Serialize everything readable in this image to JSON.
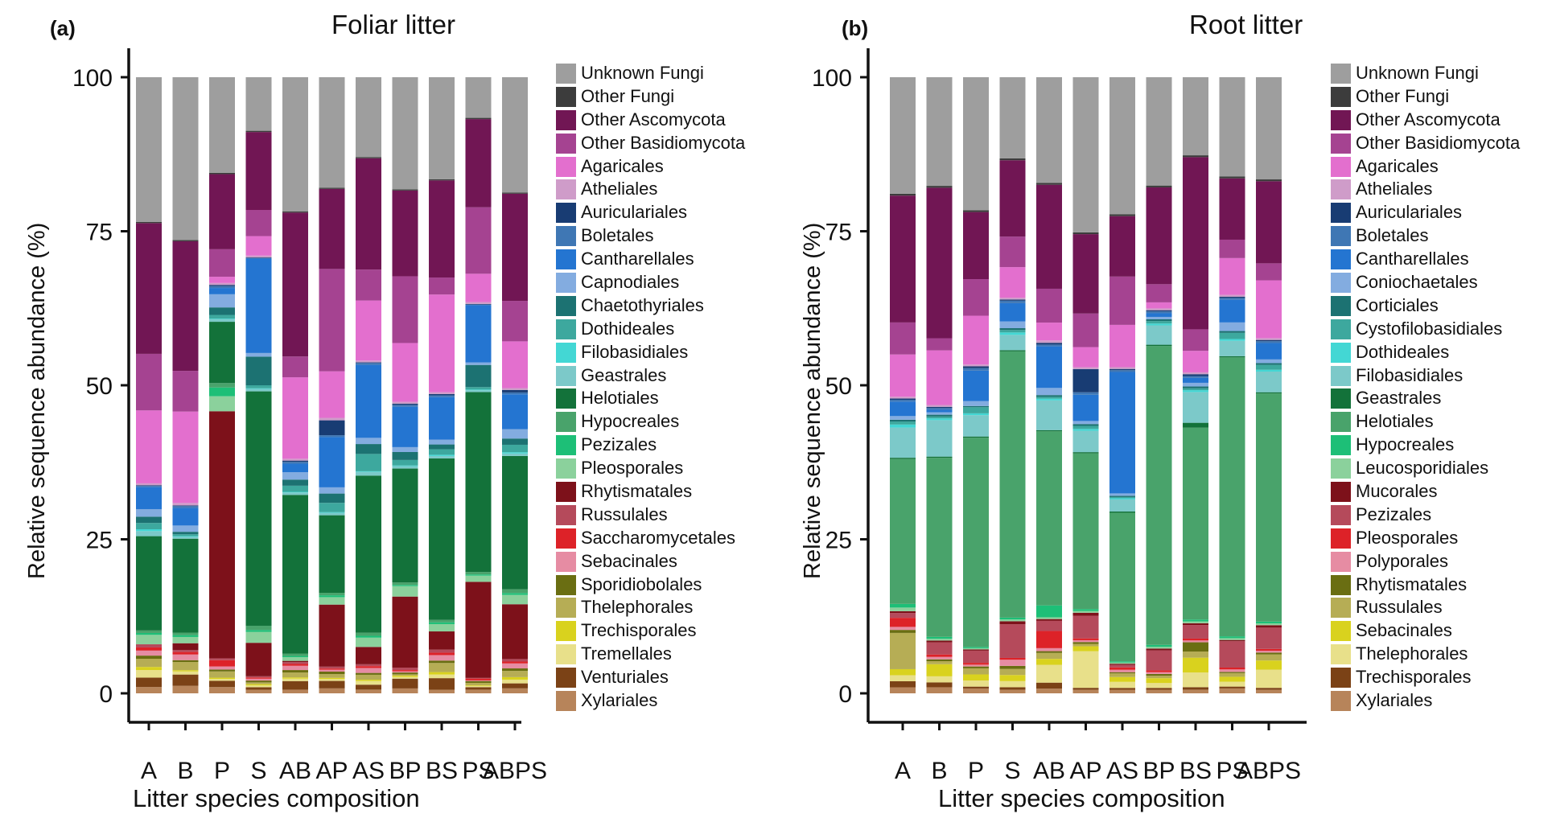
{
  "chart_data": [
    {
      "type": "bar",
      "stacked": true,
      "panel_letter": "(a)",
      "title": "Foliar litter",
      "xlabel": "Litter species composition",
      "ylabel": "Relative sequence abundance (%)",
      "ylim": [
        0,
        100
      ],
      "yticks": [
        "0",
        "25",
        "50",
        "75",
        "100"
      ],
      "legend_position": "right",
      "categories": [
        "A",
        "B",
        "P",
        "S",
        "AB",
        "AP",
        "AS",
        "BP",
        "BS",
        "PS",
        "ABPS"
      ],
      "series": [
        {
          "name": "Xylariales",
          "color": "#b7845a",
          "values": [
            1.0,
            1.2,
            1.0,
            0.6,
            0.6,
            0.8,
            0.6,
            0.8,
            0.6,
            0.6,
            0.8
          ]
        },
        {
          "name": "Venturiales",
          "color": "#7b4216",
          "values": [
            1.5,
            1.8,
            1.0,
            0.4,
            1.4,
            1.2,
            0.8,
            1.6,
            1.9,
            0.4,
            0.8
          ]
        },
        {
          "name": "Tremellales",
          "color": "#e8e08a",
          "values": [
            1.2,
            0.5,
            0.3,
            0.3,
            0.4,
            0.3,
            0.6,
            0.3,
            0.6,
            0.2,
            0.6
          ]
        },
        {
          "name": "Trechisporales",
          "color": "#d9d21e",
          "values": [
            0.5,
            0.2,
            0.2,
            0.2,
            0.2,
            0.2,
            0.2,
            0.2,
            0.4,
            0.1,
            0.4
          ]
        },
        {
          "name": "Thelephorales",
          "color": "#b6ad55",
          "values": [
            1.3,
            1.3,
            1.0,
            0.3,
            0.8,
            0.6,
            0.8,
            0.2,
            1.5,
            0.4,
            1.0
          ]
        },
        {
          "name": "Sporidiobolales",
          "color": "#6a6e12",
          "values": [
            0.5,
            0.3,
            0.3,
            0.3,
            0.4,
            0.4,
            0.3,
            0.3,
            0.4,
            0.3,
            0.4
          ]
        },
        {
          "name": "Sebacinales",
          "color": "#e68ca3",
          "values": [
            0.8,
            0.9,
            0.5,
            0.3,
            0.7,
            0.3,
            0.8,
            0.2,
            0.9,
            0.1,
            0.8
          ]
        },
        {
          "name": "Saccharomycetales",
          "color": "#dd2228",
          "values": [
            0.5,
            0.4,
            1.0,
            0.2,
            0.3,
            0.2,
            0.3,
            0.2,
            0.4,
            0.3,
            0.3
          ]
        },
        {
          "name": "Russulales",
          "color": "#b54a5b",
          "values": [
            0.5,
            0.3,
            0.3,
            0.2,
            0.3,
            0.3,
            0.3,
            0.4,
            0.5,
            0.1,
            0.4
          ]
        },
        {
          "name": "Rhytismatales",
          "color": "#7d111a",
          "values": [
            0.0,
            1.1,
            39.5,
            5.5,
            0.2,
            10.0,
            2.8,
            11.6,
            3.0,
            15.6,
            8.8
          ]
        },
        {
          "name": "Pleosporales",
          "color": "#8bd19c",
          "values": [
            1.5,
            1.0,
            2.4,
            1.8,
            0.6,
            1.2,
            1.5,
            1.7,
            1.2,
            1.0,
            1.5
          ]
        },
        {
          "name": "Pezizales",
          "color": "#1dbf77",
          "values": [
            0.3,
            0.3,
            1.4,
            0.3,
            0.2,
            0.3,
            0.3,
            0.2,
            0.3,
            0.2,
            0.3
          ]
        },
        {
          "name": "Hypocreales",
          "color": "#49a36b",
          "values": [
            0.4,
            0.4,
            0.7,
            0.7,
            0.4,
            0.4,
            0.5,
            0.4,
            0.4,
            0.4,
            0.6
          ]
        },
        {
          "name": "Helotiales",
          "color": "#13723a",
          "values": [
            15.0,
            15.0,
            9.8,
            38.5,
            25.9,
            12.5,
            25.4,
            18.6,
            26.6,
            29.2,
            21.4
          ]
        },
        {
          "name": "Geastrales",
          "color": "#7cc9c9",
          "values": [
            0.8,
            0.3,
            0.4,
            0.4,
            0.4,
            0.4,
            0.6,
            0.4,
            0.4,
            0.3,
            0.4
          ]
        },
        {
          "name": "Filobasidiales",
          "color": "#43d7d4",
          "values": [
            0.3,
            0.1,
            0.1,
            0.1,
            0.1,
            0.1,
            0.1,
            0.1,
            0.2,
            0.1,
            0.2
          ]
        },
        {
          "name": "Dothideales",
          "color": "#3da89e",
          "values": [
            1.0,
            0.3,
            0.6,
            0.5,
            1.0,
            1.5,
            2.8,
            0.9,
            0.9,
            0.4,
            1.2
          ]
        },
        {
          "name": "Chaetothyriales",
          "color": "#1c7272",
          "values": [
            1.0,
            0.4,
            1.2,
            4.7,
            1.0,
            1.5,
            1.6,
            1.3,
            0.8,
            3.6,
            1.0
          ]
        },
        {
          "name": "Capnodiales",
          "color": "#83ace0",
          "values": [
            1.2,
            1.0,
            2.1,
            0.6,
            1.2,
            1.0,
            1.0,
            0.8,
            0.8,
            0.4,
            1.5
          ]
        },
        {
          "name": "Cantharellales",
          "color": "#2475d1",
          "values": [
            3.5,
            2.8,
            1.0,
            15.5,
            1.4,
            8.1,
            11.8,
            6.6,
            7.0,
            9.3,
            5.6
          ]
        },
        {
          "name": "Boletales",
          "color": "#3f77b4",
          "values": [
            0.2,
            0.3,
            0.3,
            0.1,
            0.3,
            0.3,
            0.3,
            0.3,
            0.3,
            0.1,
            0.3
          ]
        },
        {
          "name": "Auriculariales",
          "color": "#183c73",
          "values": [
            0.1,
            0.1,
            0.2,
            0.1,
            0.2,
            2.4,
            0.1,
            0.2,
            0.2,
            0.1,
            0.4
          ]
        },
        {
          "name": "Atheliales",
          "color": "#cf9cc9",
          "values": [
            0.3,
            0.4,
            0.3,
            0.3,
            0.3,
            0.4,
            0.3,
            0.3,
            0.3,
            0.3,
            0.3
          ]
        },
        {
          "name": "Agaricales",
          "color": "#e36fce",
          "values": [
            11.6,
            14.6,
            1.0,
            3.2,
            13.3,
            7.5,
            9.7,
            9.6,
            16.1,
            4.6,
            7.5
          ]
        },
        {
          "name": "Other Basidiomycota",
          "color": "#a54391",
          "values": [
            9.0,
            6.5,
            4.4,
            4.3,
            3.4,
            16.5,
            5.0,
            10.9,
            2.8,
            10.8,
            6.5
          ]
        },
        {
          "name": "Other Ascomycota",
          "color": "#711654",
          "values": [
            20.8,
            20.7,
            12.0,
            12.8,
            23.5,
            12.9,
            18.0,
            14.0,
            16.0,
            14.3,
            17.2
          ]
        },
        {
          "name": "Other Fungi",
          "color": "#3c3c3c",
          "values": [
            0.2,
            0.2,
            0.2,
            0.2,
            0.2,
            0.2,
            0.2,
            0.2,
            0.2,
            0.2,
            0.2
          ]
        },
        {
          "name": "Unknown Fungi",
          "color": "#9e9e9e",
          "values": [
            23.0,
            26.0,
            15.3,
            8.8,
            21.9,
            17.8,
            12.9,
            18.3,
            16.8,
            6.6,
            18.5
          ]
        }
      ]
    },
    {
      "type": "bar",
      "stacked": true,
      "panel_letter": "(b)",
      "title": "Root litter",
      "xlabel": "Litter species composition",
      "ylabel": "Relative sequence abundance (%)",
      "ylim": [
        0,
        100
      ],
      "yticks": [
        "0",
        "25",
        "50",
        "75",
        "100"
      ],
      "legend_position": "right",
      "categories": [
        "A",
        "B",
        "P",
        "S",
        "AB",
        "AP",
        "AS",
        "BP",
        "BS",
        "PS",
        "ABPS"
      ],
      "series": [
        {
          "name": "Xylariales",
          "color": "#b7845a",
          "values": [
            1.0,
            1.0,
            0.8,
            0.6,
            0.8,
            0.6,
            0.6,
            0.6,
            0.6,
            0.8,
            0.6
          ]
        },
        {
          "name": "Trechisporales",
          "color": "#7b4216",
          "values": [
            1.0,
            0.8,
            0.3,
            0.4,
            1.0,
            0.3,
            0.3,
            0.3,
            0.4,
            0.3,
            0.3
          ]
        },
        {
          "name": "Thelephorales",
          "color": "#e8e08a",
          "values": [
            1.0,
            1.0,
            1.0,
            1.0,
            3.0,
            6.0,
            1.0,
            0.8,
            2.4,
            0.8,
            3.0
          ]
        },
        {
          "name": "Sebacinales",
          "color": "#d9d21e",
          "values": [
            1.0,
            2.0,
            1.0,
            1.0,
            1.0,
            0.8,
            0.8,
            0.8,
            2.4,
            0.8,
            1.5
          ]
        },
        {
          "name": "Russulales",
          "color": "#b6ad55",
          "values": [
            6.0,
            0.5,
            1.0,
            1.0,
            1.0,
            0.4,
            0.6,
            0.4,
            1.0,
            0.6,
            1.0
          ]
        },
        {
          "name": "Rhytismatales",
          "color": "#6a6e12",
          "values": [
            0.5,
            0.3,
            0.3,
            0.5,
            0.3,
            0.3,
            0.2,
            0.3,
            1.5,
            0.2,
            0.3
          ]
        },
        {
          "name": "Polyporales",
          "color": "#e68ca3",
          "values": [
            0.5,
            0.4,
            0.3,
            1.0,
            0.5,
            0.3,
            0.4,
            0.3,
            0.3,
            0.4,
            0.3
          ]
        },
        {
          "name": "Pleosporales",
          "color": "#dd2228",
          "values": [
            1.5,
            0.4,
            0.3,
            0.3,
            2.9,
            0.3,
            0.4,
            0.3,
            0.3,
            0.3,
            0.3
          ]
        },
        {
          "name": "Pezizales",
          "color": "#b54a5b",
          "values": [
            0.8,
            2.0,
            2.0,
            5.5,
            1.7,
            3.7,
            0.4,
            3.3,
            2.2,
            4.3,
            3.5
          ]
        },
        {
          "name": "Mucorales",
          "color": "#7d111a",
          "values": [
            0.3,
            0.3,
            0.2,
            0.5,
            0.3,
            0.5,
            0.2,
            0.3,
            0.3,
            0.2,
            0.4
          ]
        },
        {
          "name": "Leucosporidiales",
          "color": "#8bd19c",
          "values": [
            0.6,
            0.3,
            0.2,
            0.3,
            0.3,
            0.3,
            0.2,
            0.3,
            0.3,
            0.3,
            0.3
          ]
        },
        {
          "name": "Hypocreales",
          "color": "#1dbf77",
          "values": [
            0.6,
            0.3,
            0.2,
            0.3,
            2.0,
            0.3,
            0.2,
            0.3,
            0.3,
            0.3,
            0.3
          ]
        },
        {
          "name": "Helotiales",
          "color": "#49a36b",
          "values": [
            24.0,
            29.5,
            34.3,
            43.6,
            29.3,
            25.5,
            24.6,
            49.4,
            31.2,
            45.5,
            37.5
          ]
        },
        {
          "name": "Geastrales",
          "color": "#13723a",
          "values": [
            0.2,
            0.2,
            0.2,
            0.2,
            0.2,
            0.2,
            0.2,
            0.2,
            0.8,
            0.2,
            0.2
          ]
        },
        {
          "name": "Filobasidiales",
          "color": "#7cc9c9",
          "values": [
            5.0,
            6.0,
            3.5,
            2.5,
            5.0,
            3.5,
            2.0,
            3.2,
            5.0,
            2.5,
            3.4
          ]
        },
        {
          "name": "Dothideales",
          "color": "#43d7d4",
          "values": [
            0.5,
            0.3,
            0.3,
            0.4,
            0.3,
            0.3,
            0.2,
            0.3,
            0.3,
            0.3,
            0.3
          ]
        },
        {
          "name": "Cystofilobasidiales",
          "color": "#3da89e",
          "values": [
            0.5,
            0.3,
            1.0,
            0.4,
            0.3,
            0.5,
            0.2,
            0.4,
            0.3,
            1.0,
            0.8
          ]
        },
        {
          "name": "Corticiales",
          "color": "#1c7272",
          "values": [
            0.3,
            0.3,
            0.2,
            0.3,
            0.3,
            0.3,
            0.2,
            0.3,
            0.3,
            0.3,
            0.3
          ]
        },
        {
          "name": "Coniochaetales",
          "color": "#83ace0",
          "values": [
            0.6,
            0.4,
            0.8,
            1.1,
            1.2,
            0.5,
            0.4,
            0.4,
            0.6,
            1.4,
            0.6
          ]
        },
        {
          "name": "Cantharellales",
          "color": "#2475d1",
          "values": [
            2.4,
            0.4,
            5.0,
            3.0,
            7.0,
            4.3,
            20.1,
            0.6,
            0.8,
            3.7,
            2.7
          ]
        },
        {
          "name": "Boletales",
          "color": "#3f77b4",
          "values": [
            0.3,
            0.3,
            0.4,
            0.4,
            0.3,
            0.4,
            0.3,
            0.3,
            0.3,
            0.3,
            0.3
          ]
        },
        {
          "name": "Auriculariales",
          "color": "#183c73",
          "values": [
            0.2,
            0.2,
            0.3,
            0.2,
            0.3,
            3.8,
            0.2,
            0.2,
            0.3,
            0.2,
            0.2
          ]
        },
        {
          "name": "Atheliales",
          "color": "#cf9cc9",
          "values": [
            0.3,
            0.3,
            0.3,
            0.3,
            0.4,
            0.3,
            0.3,
            0.3,
            0.3,
            0.3,
            0.3
          ]
        },
        {
          "name": "Agaricales",
          "color": "#e36fce",
          "values": [
            7.0,
            9.0,
            8.0,
            5.0,
            3.0,
            3.3,
            7.0,
            1.0,
            3.5,
            6.0,
            9.5
          ]
        },
        {
          "name": "Other Basidiomycota",
          "color": "#a54391",
          "values": [
            5.3,
            2.0,
            6.0,
            5.0,
            5.7,
            5.5,
            8.0,
            3.0,
            3.5,
            3.0,
            2.8
          ]
        },
        {
          "name": "Other Ascomycota",
          "color": "#711654",
          "values": [
            21.0,
            24.8,
            11.0,
            12.5,
            17.5,
            13.0,
            10.0,
            16.0,
            28.0,
            10.0,
            13.5
          ]
        },
        {
          "name": "Other Fungi",
          "color": "#3c3c3c",
          "values": [
            0.3,
            0.3,
            0.3,
            0.3,
            0.3,
            0.3,
            0.3,
            0.3,
            0.3,
            0.3,
            0.3
          ]
        },
        {
          "name": "Unknown Fungi",
          "color": "#9e9e9e",
          "values": [
            19.3,
            17.9,
            21.8,
            13.3,
            17.8,
            25.4,
            22.7,
            17.9,
            12.7,
            16.2,
            16.8
          ]
        }
      ]
    }
  ]
}
